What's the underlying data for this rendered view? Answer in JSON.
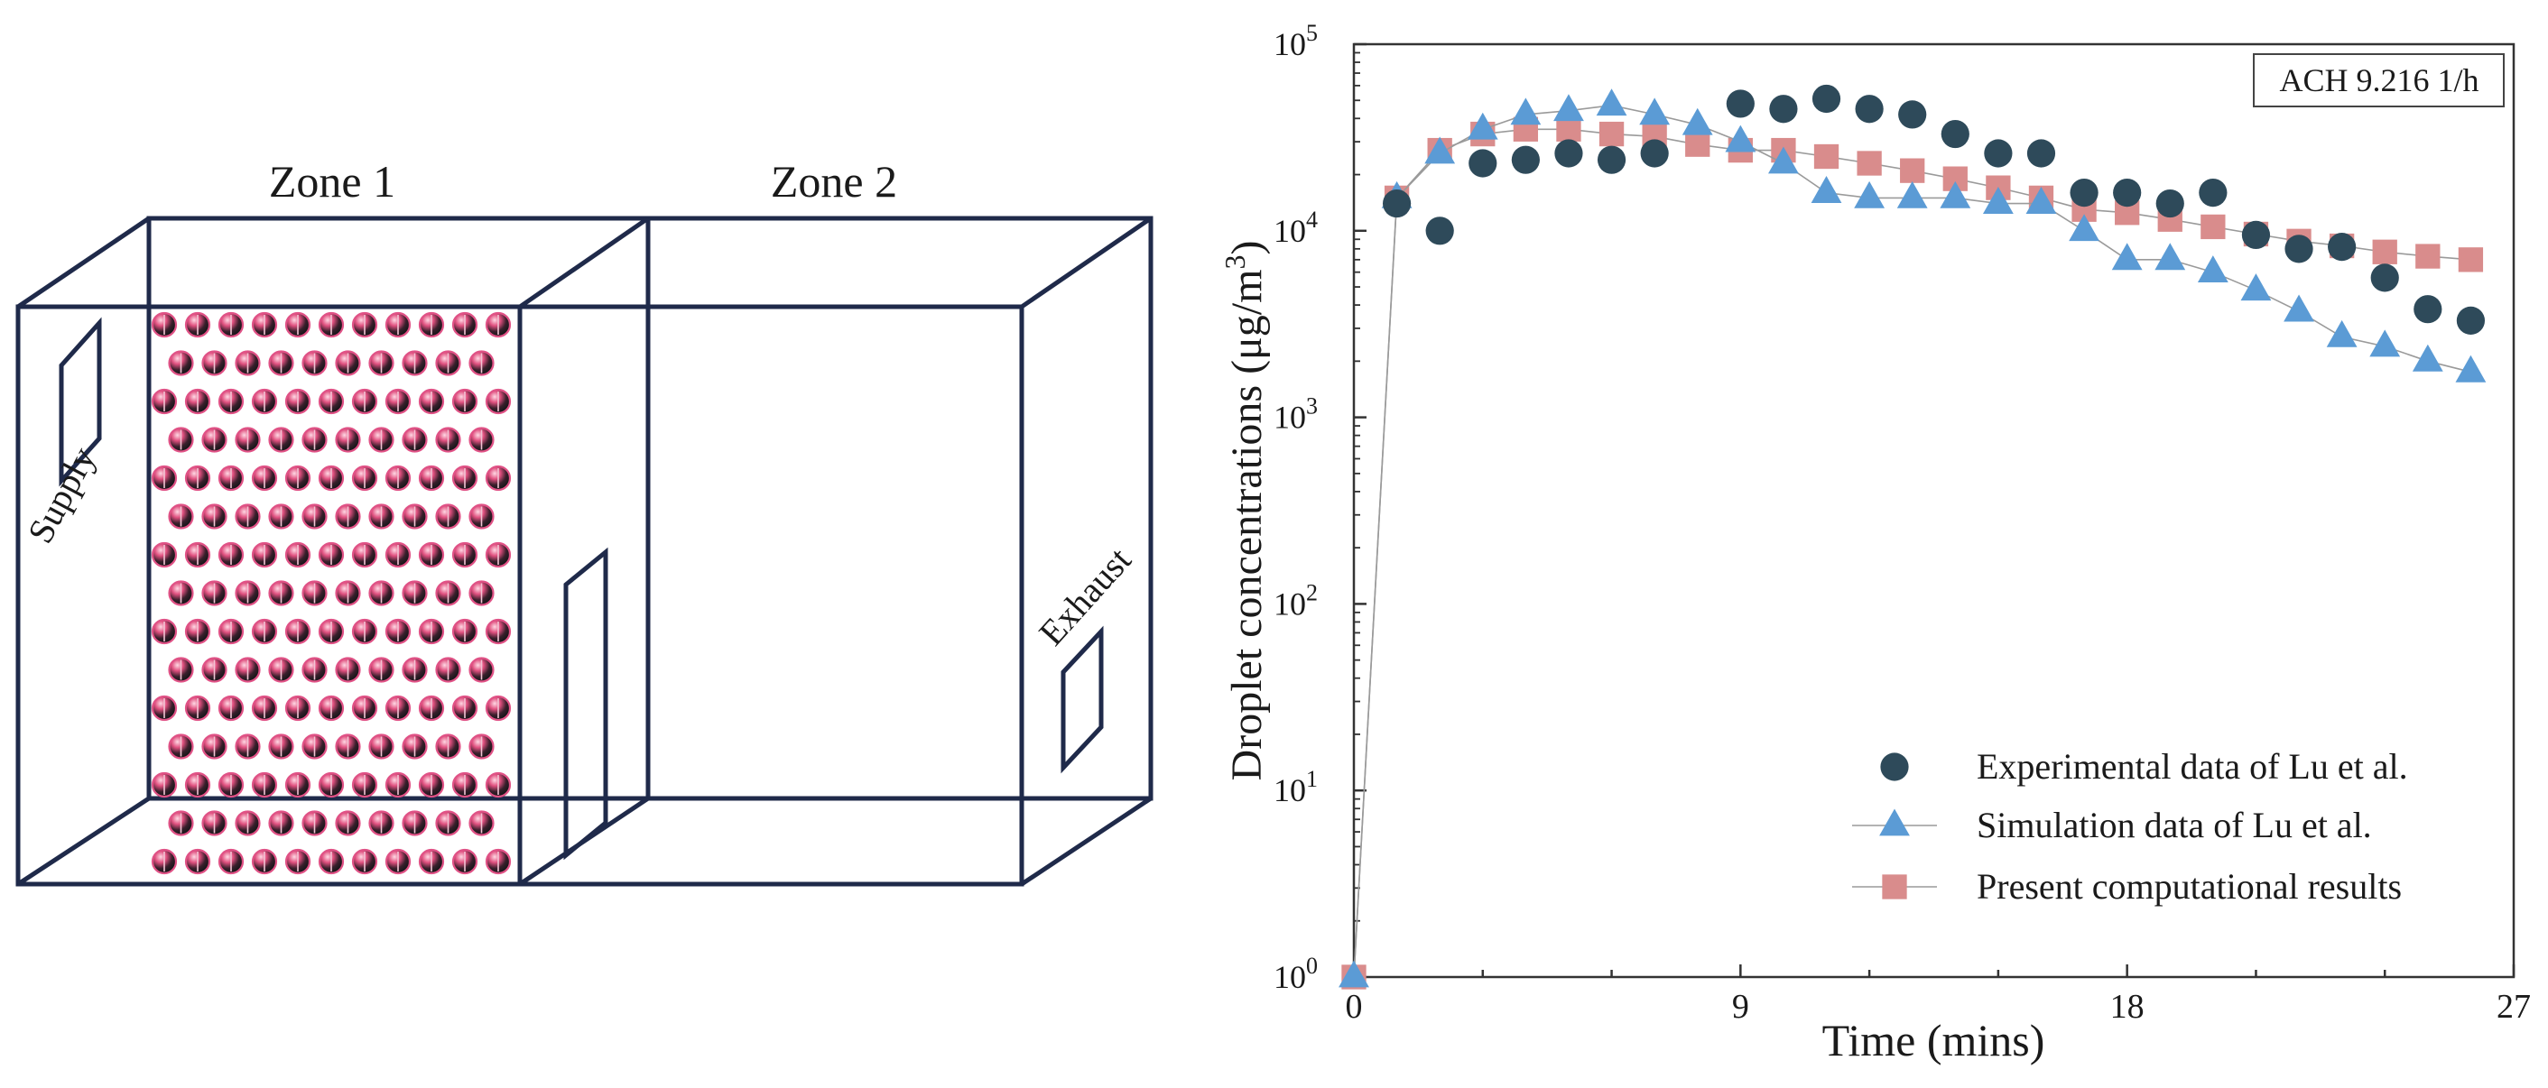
{
  "diagram": {
    "zone1_label": "Zone 1",
    "zone2_label": "Zone 2",
    "supply_label": "Supply",
    "exhaust_label": "Exhaust",
    "colors": {
      "edge": "#1f2a4a",
      "droplet_dark": "#1c1c22",
      "droplet_rim": "#d9467a"
    }
  },
  "chart_data": {
    "type": "scatter",
    "title": "",
    "annotation": "ACH 9.216 1/h",
    "xlabel": "Time (mins)",
    "ylabel": "Droplet concentrations (μg/m³)",
    "ylabel_main": "Droplet concentrations (μg/m",
    "ylabel_sup": "3",
    "ylabel_end": ")",
    "xlim": [
      0,
      27
    ],
    "ylim": [
      1,
      100000
    ],
    "yscale": "log",
    "xticks": [
      "0",
      "9",
      "18",
      "27"
    ],
    "yticks": [
      {
        "base": "10",
        "exp": "0",
        "value": 1
      },
      {
        "base": "10",
        "exp": "1",
        "value": 10
      },
      {
        "base": "10",
        "exp": "2",
        "value": 100
      },
      {
        "base": "10",
        "exp": "3",
        "value": 1000
      },
      {
        "base": "10",
        "exp": "4",
        "value": 10000
      },
      {
        "base": "10",
        "exp": "5",
        "value": 100000
      }
    ],
    "grid": false,
    "legend_position": "bottom-right",
    "series": [
      {
        "name": "Experimental data of Lu et al.",
        "marker": "circle",
        "line": false,
        "color": "#2e4a5a",
        "x": [
          1,
          2,
          3,
          4,
          5,
          6,
          7,
          9,
          10,
          11,
          12,
          13,
          14,
          15,
          16,
          17,
          18,
          19,
          20,
          21,
          22,
          23,
          24,
          25,
          26
        ],
        "y": [
          14000,
          10000,
          23000,
          24000,
          26000,
          24000,
          26000,
          48000,
          45000,
          51000,
          45000,
          42000,
          33000,
          26000,
          26000,
          16000,
          16000,
          14000,
          16000,
          9500,
          8000,
          8200,
          5600,
          3800,
          3300
        ]
      },
      {
        "name": "Simulation data of Lu et al.",
        "marker": "triangle",
        "line": true,
        "color": "#5b9bd5",
        "x": [
          0,
          1,
          2,
          3,
          4,
          5,
          6,
          7,
          8,
          9,
          10,
          11,
          12,
          13,
          14,
          15,
          16,
          17,
          18,
          19,
          20,
          21,
          22,
          23,
          24,
          25,
          26
        ],
        "y": [
          1,
          15000,
          26000,
          35000,
          42000,
          44000,
          47000,
          42000,
          37000,
          30000,
          23000,
          16000,
          15000,
          15000,
          15000,
          14000,
          14000,
          10000,
          7000,
          7000,
          6000,
          4800,
          3700,
          2700,
          2400,
          2000,
          1750
        ]
      },
      {
        "name": "Present computational results",
        "marker": "square",
        "line": true,
        "color": "#d98c8c",
        "x": [
          0,
          1,
          2,
          3,
          4,
          5,
          6,
          7,
          8,
          9,
          10,
          11,
          12,
          13,
          14,
          15,
          16,
          17,
          18,
          19,
          20,
          21,
          22,
          23,
          24,
          25,
          26
        ],
        "y": [
          1,
          15000,
          27000,
          33000,
          35000,
          35000,
          33000,
          32000,
          29000,
          27000,
          27000,
          25000,
          23000,
          21000,
          19000,
          17000,
          15000,
          13000,
          12500,
          11500,
          10500,
          9600,
          8800,
          8300,
          7700,
          7300,
          7000
        ]
      }
    ]
  }
}
